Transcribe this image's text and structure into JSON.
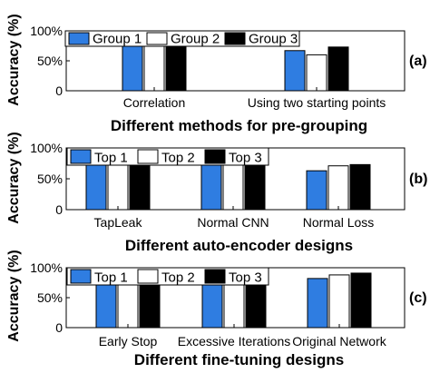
{
  "chart_data": [
    {
      "type": "bar",
      "panel_label": "(a)",
      "xlabel": "Different methods for pre-grouping",
      "ylabel": "Accuracy (%)",
      "ylim": [
        0,
        100
      ],
      "yticks": [
        "0",
        "50%",
        "100%"
      ],
      "categories": [
        "Correlation",
        "Using two starting points"
      ],
      "series": [
        {
          "name": "Group 1",
          "color": "#2f7de1",
          "values": [
            96,
            67
          ]
        },
        {
          "name": "Group 2",
          "color": "#ffffff",
          "values": [
            97,
            60
          ]
        },
        {
          "name": "Group 3",
          "color": "#000000",
          "values": [
            98,
            73
          ]
        }
      ],
      "legend": "top"
    },
    {
      "type": "bar",
      "panel_label": "(b)",
      "xlabel": "Different auto-encoder designs",
      "ylabel": "Accuracy (%)",
      "ylim": [
        0,
        100
      ],
      "yticks": [
        "0",
        "50%",
        "100%"
      ],
      "categories": [
        "TapLeak",
        "Normal CNN",
        "Normal Loss"
      ],
      "series": [
        {
          "name": "Top 1",
          "color": "#2f7de1",
          "values": [
            82,
            75,
            63
          ]
        },
        {
          "name": "Top 2",
          "color": "#ffffff",
          "values": [
            90,
            82,
            71
          ]
        },
        {
          "name": "Top 3",
          "color": "#000000",
          "values": [
            94,
            85,
            73
          ]
        }
      ],
      "legend": "top"
    },
    {
      "type": "bar",
      "panel_label": "(c)",
      "xlabel": "Different fine-tuning designs",
      "ylabel": "Accuracy (%)",
      "ylim": [
        0,
        100
      ],
      "yticks": [
        "0",
        "50%",
        "100%"
      ],
      "categories": [
        "Early Stop",
        "Excessive Iterations",
        "Original Network"
      ],
      "series": [
        {
          "name": "Top 1",
          "color": "#2f7de1",
          "values": [
            88,
            88,
            82
          ]
        },
        {
          "name": "Top 2",
          "color": "#ffffff",
          "values": [
            92,
            92,
            88
          ]
        },
        {
          "name": "Top 3",
          "color": "#000000",
          "values": [
            93,
            94,
            91
          ]
        }
      ],
      "legend": "top"
    }
  ]
}
